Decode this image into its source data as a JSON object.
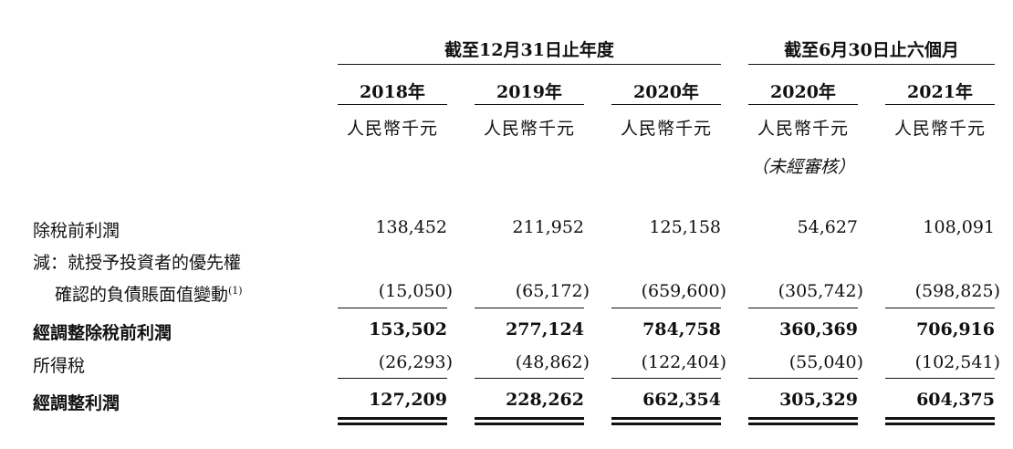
{
  "header": {
    "group_fy": "截至12月31日止年度",
    "group_6m": "截至6月30日止六個月",
    "years": [
      "2018年",
      "2019年",
      "2020年",
      "2020年",
      "2021年"
    ],
    "unit": "人民幣千元",
    "unaudited": "（未經審核）"
  },
  "rows": [
    {
      "label": "除稅前利潤",
      "values": [
        "138,452",
        "211,952",
        "125,158",
        "54,627",
        "108,091"
      ]
    },
    {
      "label": "減：就授予投資者的優先權",
      "values": []
    },
    {
      "label": "確認的負債賬面值變動",
      "footnote": "(1)",
      "values": [
        "(15,050)",
        "(65,172)",
        "(659,600)",
        "(305,742)",
        "(598,825)"
      ]
    },
    {
      "label": "經調整除稅前利潤",
      "values": [
        "153,502",
        "277,124",
        "784,758",
        "360,369",
        "706,916"
      ]
    },
    {
      "label": "所得稅",
      "values": [
        "(26,293)",
        "(48,862)",
        "(122,404)",
        "(55,040)",
        "(102,541)"
      ]
    },
    {
      "label": "經調整利潤",
      "values": [
        "127,209",
        "228,262",
        "662,354",
        "305,329",
        "604,375"
      ]
    }
  ]
}
